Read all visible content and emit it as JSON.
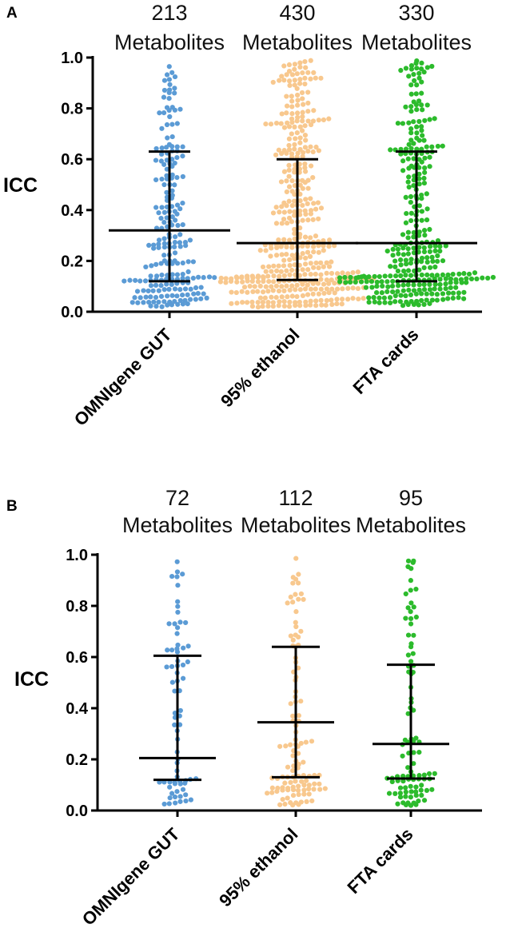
{
  "chart_data": [
    {
      "panel": "A",
      "type": "scatter",
      "title": "",
      "xlabel": "",
      "ylabel": "ICC",
      "ylim": [
        0,
        1.0
      ],
      "yticks": [
        "0.0",
        "0.2",
        "0.4",
        "0.6",
        "0.8",
        "1.0"
      ],
      "categories": [
        "OMNIgene GUT",
        "95% ethanol",
        "FTA cards"
      ],
      "count_numbers": [
        "213",
        "430",
        "330"
      ],
      "count_word": "Metabolites",
      "colors": [
        "#5b9bd5",
        "#f8c88e",
        "#2cbb2c"
      ],
      "n": [
        213,
        430,
        330
      ],
      "median": [
        0.32,
        0.27,
        0.27
      ],
      "q1": [
        0.12,
        0.125,
        0.12
      ],
      "q3": [
        0.63,
        0.6,
        0.63
      ]
    },
    {
      "panel": "B",
      "type": "scatter",
      "title": "",
      "xlabel": "",
      "ylabel": "ICC",
      "ylim": [
        0,
        1.0
      ],
      "yticks": [
        "0.0",
        "0.2",
        "0.4",
        "0.6",
        "0.8",
        "1.0"
      ],
      "categories": [
        "OMNIgene GUT",
        "95% ethanol",
        "FTA cards"
      ],
      "count_numbers": [
        "72",
        "112",
        "95"
      ],
      "count_word": "Metabolites",
      "colors": [
        "#5b9bd5",
        "#f8c88e",
        "#2cbb2c"
      ],
      "n": [
        72,
        112,
        95
      ],
      "median": [
        0.205,
        0.345,
        0.26
      ],
      "q1": [
        0.12,
        0.13,
        0.125
      ],
      "q3": [
        0.605,
        0.64,
        0.57
      ]
    }
  ]
}
